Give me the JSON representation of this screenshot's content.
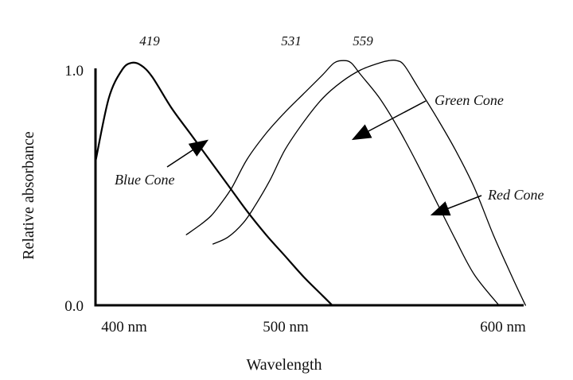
{
  "chart_data": {
    "type": "line",
    "xlabel": "Wavelength",
    "ylabel": "Relative absorbance",
    "xlim": [
      400,
      625
    ],
    "ylim": [
      0,
      1.05
    ],
    "x_ticks": [
      {
        "value": 400,
        "label": "400 nm"
      },
      {
        "value": 500,
        "label": "500 nm"
      },
      {
        "value": 600,
        "label": "600 nm"
      }
    ],
    "y_ticks": [
      {
        "value": 0,
        "label": "0.0"
      },
      {
        "value": 1,
        "label": "1.0"
      }
    ],
    "grid": false,
    "series": [
      {
        "name": "Blue Cone",
        "peak": 419,
        "stroke_width": 2.2,
        "x": [
          400,
          407,
          414,
          419,
          424,
          430,
          440,
          450,
          460,
          470,
          480,
          490,
          500,
          510,
          520,
          525
        ],
        "y": [
          0.61,
          0.88,
          1.0,
          1.03,
          1.02,
          0.97,
          0.84,
          0.73,
          0.62,
          0.51,
          0.4,
          0.3,
          0.21,
          0.12,
          0.04,
          0.0
        ]
      },
      {
        "name": "Green Cone",
        "peak": 531,
        "stroke_width": 1.3,
        "x": [
          448,
          455,
          461,
          466,
          472,
          480,
          490,
          500,
          510,
          520,
          526,
          531,
          535,
          540,
          550,
          560,
          570,
          580,
          590,
          600,
          613
        ],
        "y": [
          0.3,
          0.34,
          0.38,
          0.43,
          0.5,
          0.62,
          0.73,
          0.82,
          0.9,
          0.98,
          1.03,
          1.04,
          1.03,
          0.98,
          0.88,
          0.75,
          0.6,
          0.44,
          0.28,
          0.13,
          0.0
        ]
      },
      {
        "name": "Red Cone",
        "peak": 559,
        "stroke_width": 1.3,
        "x": [
          462,
          470,
          478,
          484,
          492,
          500,
          510,
          520,
          530,
          540,
          550,
          555,
          559,
          563,
          570,
          580,
          590,
          600,
          610,
          620,
          627
        ],
        "y": [
          0.26,
          0.29,
          0.35,
          0.42,
          0.53,
          0.66,
          0.78,
          0.88,
          0.95,
          1.0,
          1.03,
          1.04,
          1.04,
          1.02,
          0.93,
          0.8,
          0.66,
          0.5,
          0.3,
          0.12,
          0.0
        ]
      }
    ],
    "annotations": [
      {
        "text": "419",
        "kind": "peak",
        "x": 419
      },
      {
        "text": "531",
        "kind": "peak",
        "x": 531
      },
      {
        "text": "559",
        "kind": "peak",
        "x": 559
      },
      {
        "text": "Blue Cone",
        "kind": "label",
        "series": "Blue Cone"
      },
      {
        "text": "Green Cone",
        "kind": "label",
        "series": "Green Cone"
      },
      {
        "text": "Red Cone",
        "kind": "label",
        "series": "Red Cone"
      }
    ]
  }
}
